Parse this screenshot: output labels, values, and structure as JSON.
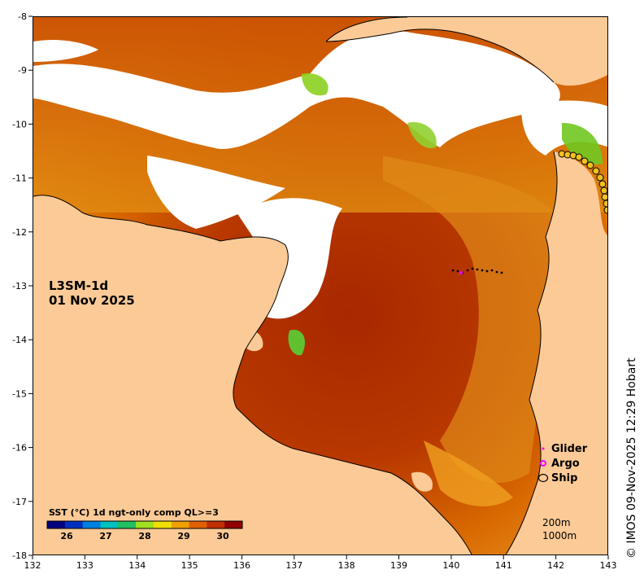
{
  "map": {
    "product_name": "L3SM-1d",
    "date": "01 Nov 2025",
    "credit": "© IMOS 09-Nov-2025 12:29 Hobart",
    "lon_ticks": [
      "132",
      "133",
      "134",
      "135",
      "136",
      "137",
      "138",
      "139",
      "140",
      "141",
      "142",
      "143"
    ],
    "lat_ticks": [
      "-8",
      "-9",
      "-10",
      "-11",
      "-12",
      "-13",
      "-14",
      "-15",
      "-16",
      "-17",
      "-18"
    ],
    "lon_range": [
      132,
      143
    ],
    "lat_range": [
      -18,
      -8
    ],
    "colors": {
      "land": "#fcca96",
      "cloud": "#ffffff",
      "sst_warm": "#b03000",
      "sst_mid": "#d86a00",
      "sst_cool": "#f0a020",
      "sst_green": "#70d020",
      "glider": "#ff00ff",
      "argo": "#ff00ff",
      "ship": "#f0c020"
    }
  },
  "legend": {
    "glider_label": "Glider",
    "argo_label": "Argo",
    "ship_label": "Ship"
  },
  "depth_contours": {
    "label_200": "200m",
    "label_1000": "1000m"
  },
  "colorbar": {
    "title": "SST (°C) 1d ngt-only comp QL>=3",
    "ticks": [
      "26",
      "27",
      "28",
      "29",
      "30"
    ]
  }
}
